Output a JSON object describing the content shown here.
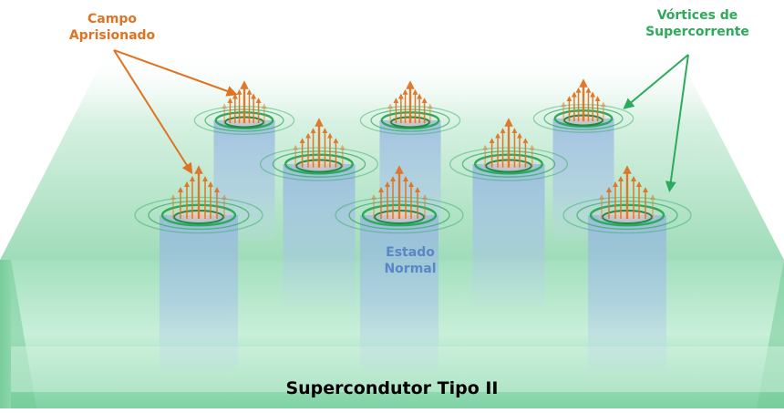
{
  "labels": {
    "trapped_field_line1": "Campo",
    "trapped_field_line2": "Aprisionado",
    "vortices_line1": "Vórtices de",
    "vortices_line2": "Supercorrente",
    "normal_line1": "Estado",
    "normal_line2": "Normal",
    "title": "Supercondutor Tipo II"
  },
  "colors": {
    "field_orange": "#E07322",
    "vortex_green": "#2DAA5A",
    "normal_blue": "#5B86C5",
    "slab_green": "#8ED9AE",
    "title_black": "#000000"
  },
  "vortex_count": 8,
  "icons": [
    "field-arrow-icon",
    "current-loop-icon",
    "pointer-arrow-icon"
  ]
}
